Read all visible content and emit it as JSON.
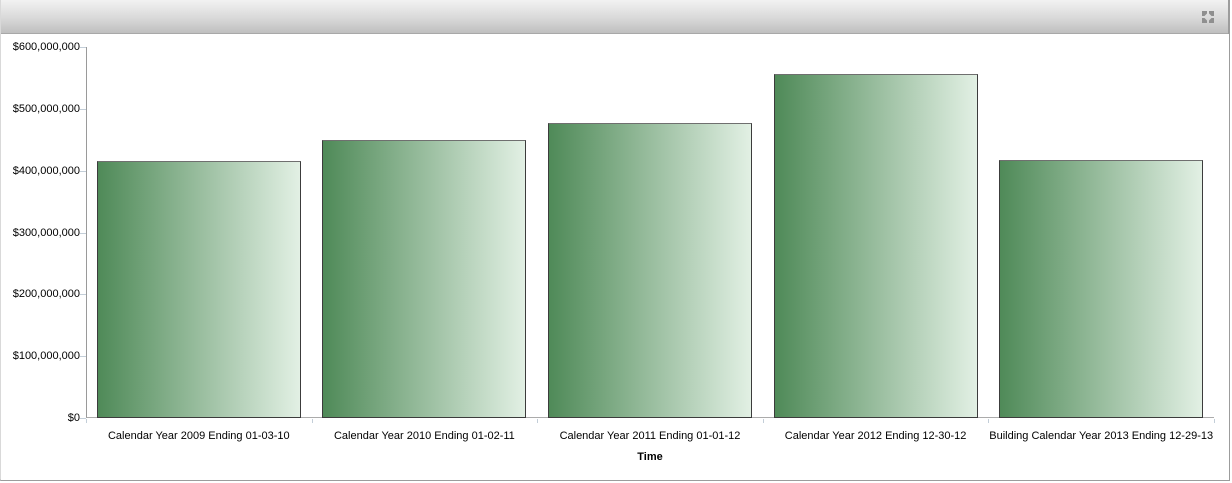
{
  "widget": {
    "header": {
      "icon": "maximize-icon",
      "icon_color": "#8f8f8f",
      "background_top": "#f2f2f2",
      "background_bottom": "#bfbfbf"
    },
    "border_color": "#9c9c9c"
  },
  "chart_data": {
    "type": "bar",
    "title": "",
    "xlabel": "Time",
    "ylabel": "",
    "categories": [
      "Calendar Year 2009 Ending 01-03-10",
      "Calendar Year 2010 Ending 01-02-11",
      "Calendar Year 2011 Ending 01-01-12",
      "Calendar Year 2012 Ending 12-30-12",
      "Building Calendar Year 2013 Ending 12-29-13"
    ],
    "values": [
      415000000,
      450000000,
      477000000,
      556000000,
      417000000
    ],
    "value_format": "USD",
    "ylim": [
      0,
      600000000
    ],
    "y_ticks": [
      "$600,000,000",
      "$500,000,000",
      "$400,000,000",
      "$300,000,000",
      "$200,000,000",
      "$100,000,000",
      "$0"
    ],
    "grid": false,
    "legend": "none",
    "bar_gradient_start": "#4f8a58",
    "bar_gradient_end": "#e2f0e4",
    "bar_border_color": "#3c3c3c",
    "axis_line_color": "#9a9a9a",
    "tick_color": "#c3ced8"
  }
}
